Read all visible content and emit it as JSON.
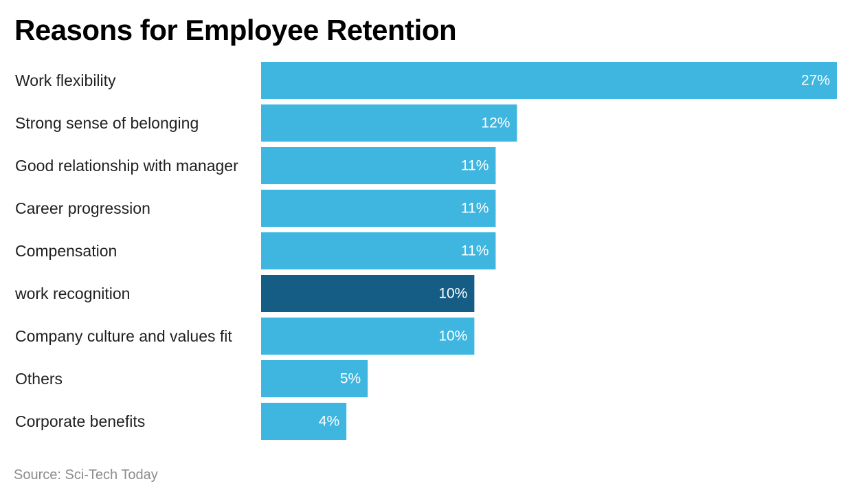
{
  "chart_data": {
    "type": "bar",
    "orientation": "horizontal",
    "title": "Reasons for Employee Retention",
    "categories": [
      "Work flexibility",
      "Strong sense of belonging",
      "Good relationship with manager",
      "Career progression",
      "Compensation",
      "work recognition",
      "Company culture and values fit",
      "Others",
      "Corporate benefits"
    ],
    "values": [
      27,
      12,
      11,
      11,
      11,
      10,
      10,
      5,
      4
    ],
    "value_labels": [
      "27%",
      "12%",
      "11%",
      "11%",
      "11%",
      "10%",
      "10%",
      "5%",
      "4%"
    ],
    "unit": "%",
    "xlim": [
      0,
      27
    ],
    "highlight_index": 5,
    "colors": {
      "bar": "#3eb6e0",
      "highlight": "#165d86"
    },
    "grid": false,
    "legend": "none"
  },
  "source": "Source: Sci-Tech Today"
}
